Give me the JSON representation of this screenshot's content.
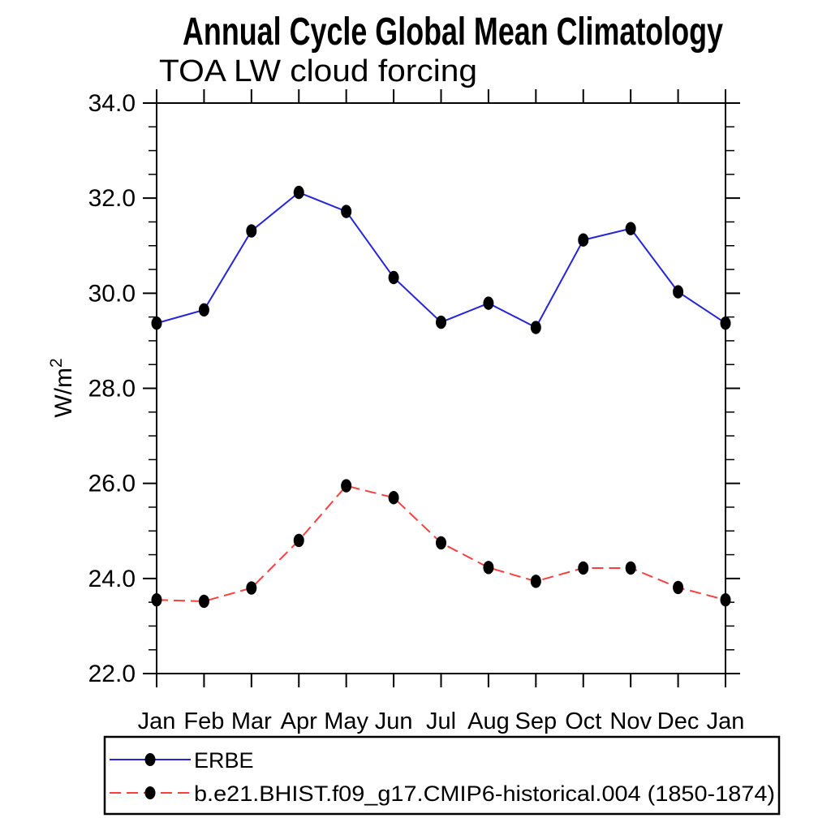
{
  "chart_data": {
    "type": "line",
    "title": "Annual Cycle Global Mean Climatology",
    "subtitle": "TOA LW cloud forcing",
    "ylabel_base": "W/m",
    "ylabel_sup": "2",
    "x_categories": [
      "Jan",
      "Feb",
      "Mar",
      "Apr",
      "May",
      "Jun",
      "Jul",
      "Aug",
      "Sep",
      "Oct",
      "Nov",
      "Dec",
      "Jan"
    ],
    "ylim": [
      22.0,
      34.0
    ],
    "ytick_values": [
      22,
      24,
      26,
      28,
      30,
      32,
      34
    ],
    "ytick_labels": [
      "22.0",
      "24.0",
      "26.0",
      "28.0",
      "30.0",
      "32.0",
      "34.0"
    ],
    "y_minor_step": 0.5,
    "grid": false,
    "legend_position": "bottom-left-box",
    "axis_color": "#000000",
    "marker_color": "#000000",
    "series": [
      {
        "name": "ERBE",
        "color": "#2626d8",
        "line_style": "solid",
        "marker": "black-filled-circle",
        "values": [
          29.37,
          29.65,
          31.31,
          32.12,
          31.72,
          30.33,
          29.39,
          29.79,
          29.28,
          31.12,
          31.36,
          30.03,
          29.37
        ]
      },
      {
        "name": "b.e21.BHIST.f09_g17.CMIP6-historical.004 (1850-1874)",
        "color": "#f94040",
        "line_style": "dashed",
        "marker": "black-filled-circle",
        "values": [
          23.55,
          23.52,
          23.8,
          24.8,
          25.95,
          25.7,
          24.75,
          24.23,
          23.94,
          24.22,
          24.22,
          23.81,
          23.55
        ]
      }
    ]
  }
}
